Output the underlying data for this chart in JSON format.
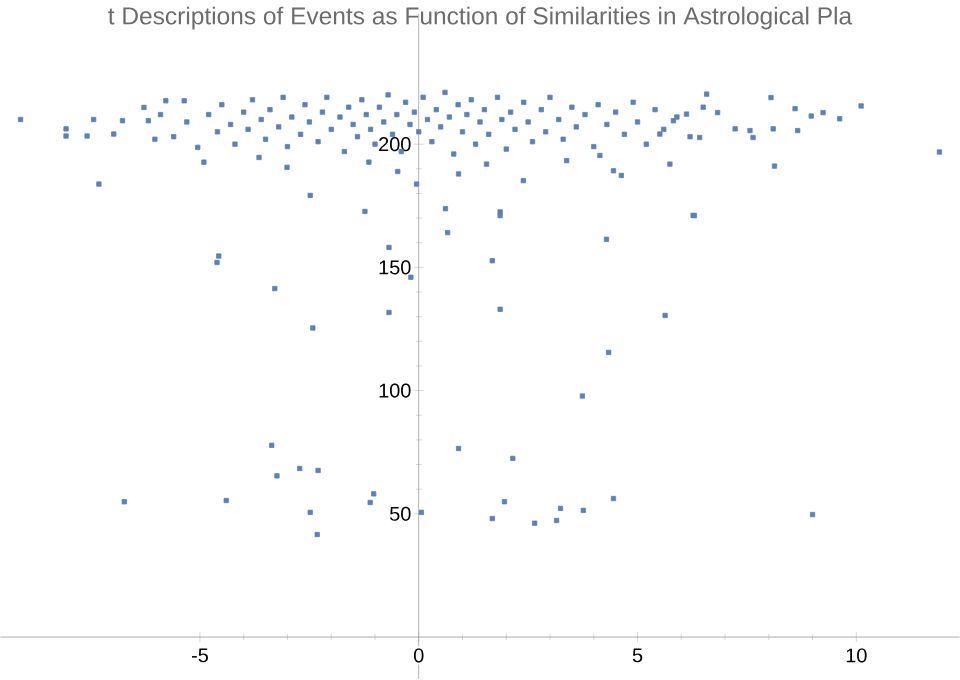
{
  "chart_data": {
    "type": "scatter",
    "title": "t Descriptions of Events as Function of Similarities in Astrological Pla",
    "color": "#5e81b5",
    "marker": "square",
    "xlim": [
      -9.56,
      12.36
    ],
    "ylim": [
      -17,
      253
    ],
    "xticks": [
      -5,
      0,
      5,
      10
    ],
    "yticks": [
      50,
      100,
      150,
      200
    ],
    "grid": false,
    "x": [
      -4.57,
      -4.61,
      -3.29,
      -2.42,
      -0.68,
      -0.68,
      -0.18,
      0.66,
      -3.36,
      -3.24,
      -2.72,
      -2.3,
      -4.4,
      -6.73,
      -2.48,
      -2.32,
      -1.03,
      -1.11,
      0.06,
      0.91,
      1.86,
      6.3,
      4.29,
      1.68,
      1.86,
      5.63,
      4.34,
      3.74,
      2.15,
      1.96,
      1.68,
      2.65,
      3.15,
      3.24,
      3.76,
      4.45,
      9.0,
      -9.1,
      -8.06,
      -8.06,
      -7.58,
      -7.43,
      -7.31,
      -6.97,
      -6.77,
      -6.28,
      -6.18,
      -6.03,
      -5.78,
      -5.36,
      -5.05,
      -4.91,
      -3.65,
      -3.01,
      -2.48,
      -1.23,
      -0.05,
      -1.14,
      -0.48,
      0.91,
      0.61,
      10.11,
      11.9,
      9.62,
      9.24,
      8.97,
      8.6,
      8.66,
      8.05,
      8.1,
      7.57,
      7.23,
      7.64,
      8.13,
      6.83,
      6.58,
      6.42,
      5.74,
      4.63,
      2.39,
      1.86,
      6.27,
      1.55,
      4.45,
      4.14,
      5.82,
      6.12,
      5.51,
      3.38,
      -4.8,
      -4.6,
      -4.5,
      -4.3,
      -4.2,
      -4.0,
      -3.9,
      -3.8,
      -3.6,
      -3.5,
      -3.4,
      -3.2,
      -3.1,
      -3.0,
      -2.9,
      -2.7,
      -2.6,
      -2.5,
      -2.3,
      -2.2,
      -2.1,
      -2.0,
      -1.8,
      -1.7,
      -1.6,
      -1.5,
      -1.4,
      -1.3,
      -1.2,
      -1.1,
      -1.0,
      -0.9,
      -0.8,
      -0.7,
      -0.6,
      -0.5,
      -0.4,
      -0.3,
      -0.2,
      -0.1,
      0.0,
      0.1,
      0.2,
      0.3,
      0.4,
      0.5,
      0.6,
      0.7,
      0.8,
      0.9,
      1.0,
      1.1,
      1.2,
      1.3,
      1.4,
      1.5,
      1.6,
      1.8,
      1.9,
      2.0,
      2.1,
      2.2,
      2.4,
      2.5,
      2.6,
      2.8,
      2.9,
      3.0,
      3.2,
      3.3,
      3.5,
      3.6,
      3.8,
      4.0,
      4.1,
      4.3,
      4.5,
      4.7,
      4.9,
      5.0,
      5.2,
      5.4,
      5.6,
      5.9,
      6.2,
      6.5,
      -5.3,
      -5.6,
      -5.9
    ],
    "values": [
      154.6,
      152,
      141.4,
      125.4,
      158.1,
      131.7,
      146,
      164.1,
      77.8,
      65.4,
      68.4,
      67.6,
      55.4,
      54.9,
      50.6,
      41.6,
      58.1,
      54.6,
      50.6,
      76.5,
      171,
      171,
      161.4,
      152.7,
      133,
      130.5,
      115.5,
      97.8,
      72.5,
      54.9,
      48.1,
      46.2,
      47.3,
      52.2,
      51.4,
      56.2,
      49.7,
      210,
      206.2,
      203.3,
      203.3,
      210,
      183.8,
      204.1,
      209.5,
      214.9,
      209.5,
      202,
      217.6,
      217.6,
      198.7,
      192.7,
      194.6,
      190.6,
      179.2,
      172.7,
      183.8,
      192.7,
      188.9,
      187.9,
      173.8,
      215.5,
      196.8,
      210.3,
      212.8,
      211.4,
      214.4,
      205.5,
      218.9,
      206.2,
      205.5,
      206.2,
      202.7,
      191.1,
      212.8,
      220.3,
      202.7,
      191.9,
      187.3,
      185.2,
      172.5,
      171.1,
      191.9,
      189.2,
      195.4,
      209.5,
      212.2,
      204.1,
      193.3,
      212,
      205,
      216,
      208,
      200,
      213,
      206,
      218,
      210,
      202,
      214,
      207,
      219,
      199,
      211,
      204,
      216,
      209,
      201,
      213,
      219,
      206,
      211,
      197,
      215,
      208,
      203,
      218,
      212,
      206,
      200,
      215,
      209,
      220,
      204,
      212,
      197,
      217,
      208,
      213,
      205,
      219,
      210,
      201,
      214,
      207,
      221,
      211,
      196,
      216,
      205,
      212,
      218,
      200,
      209,
      214,
      204,
      219,
      210,
      198,
      213,
      206,
      217,
      209,
      201,
      214,
      205,
      219,
      210,
      202,
      215,
      207,
      212,
      199,
      216,
      208,
      213,
      204,
      217,
      209,
      200,
      214,
      206,
      211,
      203,
      215,
      209,
      203,
      212
    ]
  }
}
